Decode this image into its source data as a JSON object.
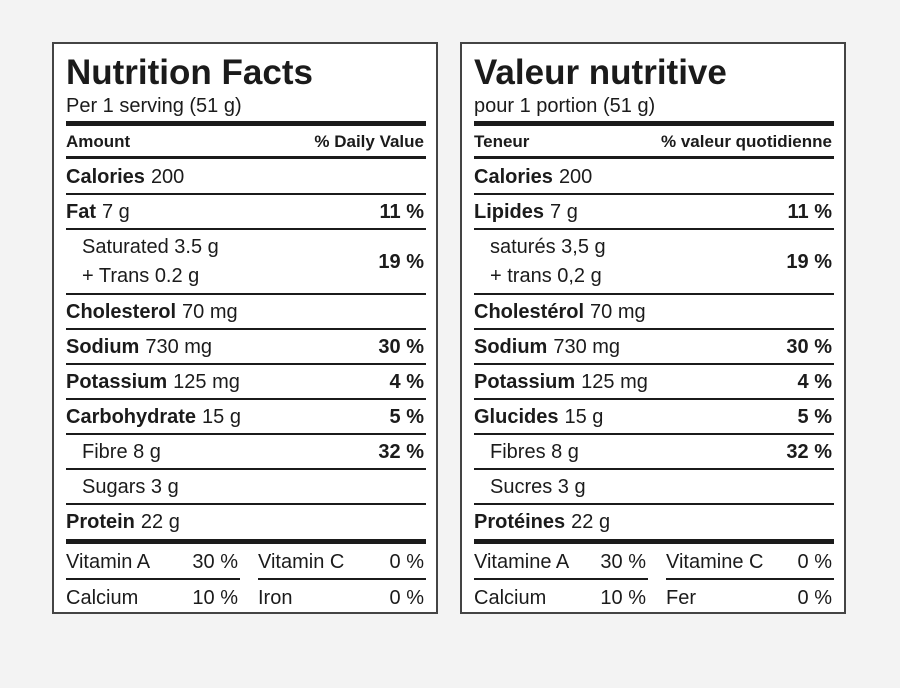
{
  "panels": [
    {
      "title": "Nutrition Facts",
      "serving": "Per 1 serving (51 g)",
      "header": {
        "amount": "Amount",
        "dv": "% Daily Value"
      },
      "rows": [
        {
          "name": "Calories",
          "amount": "200"
        },
        {
          "name": "Fat",
          "amount": "7 g",
          "dv": "11 %"
        },
        {
          "sub": [
            "Saturated 3.5 g",
            "+ Trans 0.2 g"
          ],
          "dv": "19 %"
        },
        {
          "name": "Cholesterol",
          "amount": "70 mg"
        },
        {
          "name": "Sodium",
          "amount": "730 mg",
          "dv": "30 %"
        },
        {
          "name": "Potassium",
          "amount": "125 mg",
          "dv": "4 %"
        },
        {
          "name": "Carbohydrate",
          "amount": "15 g",
          "dv": "5 %"
        },
        {
          "sub": [
            "Fibre 8 g"
          ],
          "dv": "32 %"
        },
        {
          "sub": [
            "Sugars 3 g"
          ]
        },
        {
          "name": "Protein",
          "amount": "22 g"
        }
      ],
      "vitamins": [
        [
          {
            "name": "Vitamin A",
            "pct": "30 %"
          },
          {
            "name": "Vitamin C",
            "pct": "0 %"
          }
        ],
        [
          {
            "name": "Calcium",
            "pct": "10 %"
          },
          {
            "name": "Iron",
            "pct": "0 %"
          }
        ]
      ]
    },
    {
      "title": "Valeur nutritive",
      "serving": "pour 1 portion (51 g)",
      "header": {
        "amount": "Teneur",
        "dv": "% valeur quotidienne"
      },
      "rows": [
        {
          "name": "Calories",
          "amount": "200"
        },
        {
          "name": "Lipides",
          "amount": "7 g",
          "dv": "11 %"
        },
        {
          "sub": [
            "saturés 3,5 g",
            "+ trans 0,2 g"
          ],
          "dv": "19 %"
        },
        {
          "name": "Cholestérol",
          "amount": "70 mg"
        },
        {
          "name": "Sodium",
          "amount": "730 mg",
          "dv": "30 %"
        },
        {
          "name": "Potassium",
          "amount": "125 mg",
          "dv": "4 %"
        },
        {
          "name": "Glucides",
          "amount": "15 g",
          "dv": "5 %"
        },
        {
          "sub": [
            "Fibres 8 g"
          ],
          "dv": "32 %"
        },
        {
          "sub": [
            "Sucres 3 g"
          ]
        },
        {
          "name": "Protéines",
          "amount": "22 g"
        }
      ],
      "vitamins": [
        [
          {
            "name": "Vitamine A",
            "pct": "30 %"
          },
          {
            "name": "Vitamine C",
            "pct": "0 %"
          }
        ],
        [
          {
            "name": "Calcium",
            "pct": "10 %"
          },
          {
            "name": "Fer",
            "pct": "0 %"
          }
        ]
      ]
    }
  ]
}
